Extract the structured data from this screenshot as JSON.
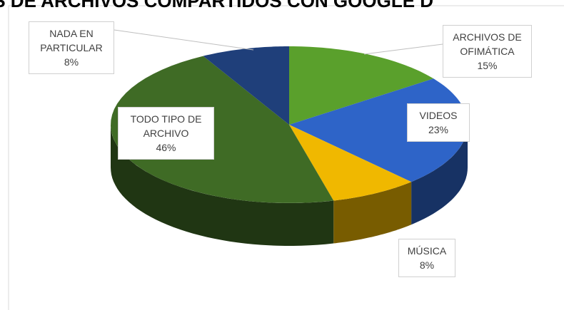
{
  "chart_data": {
    "type": "pie3d",
    "title": "OS DE ARCHIVOS COMPARTIDOS CON GOOGLE D",
    "categories": [
      "ARCHIVOS DE OFIMÁTICA",
      "VIDEOS",
      "MÚSICA",
      "TODO TIPO DE ARCHIVO",
      "NADA EN PARTICULAR"
    ],
    "values": [
      15,
      23,
      8,
      46,
      8
    ],
    "value_labels": [
      "15%",
      "23%",
      "8%",
      "46%",
      "8%"
    ],
    "colors": [
      "#5aa02c",
      "#2e64c8",
      "#f0b800",
      "#3f6b25",
      "#1f3f7a"
    ]
  }
}
